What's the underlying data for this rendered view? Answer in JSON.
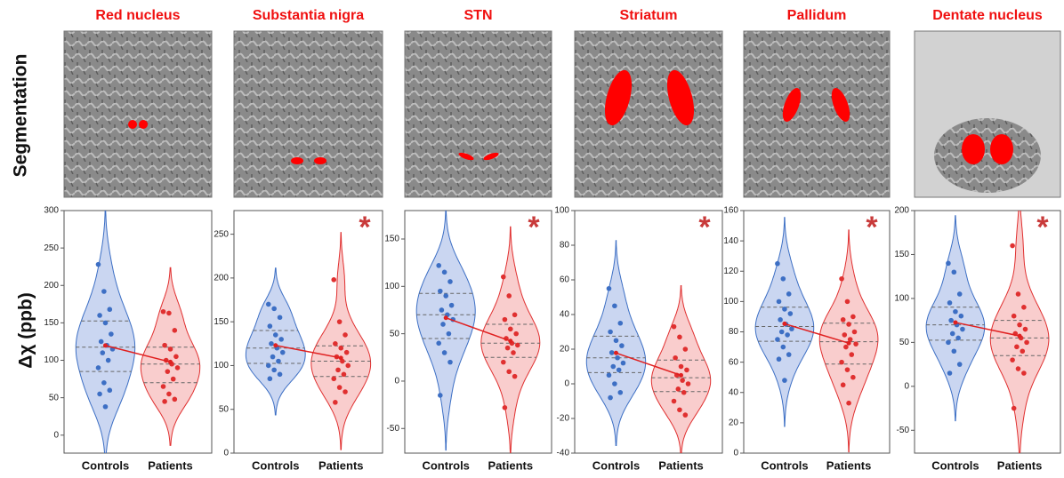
{
  "row_labels": [
    "Segmentation",
    "Δχ (ppb)"
  ],
  "chart_data": [
    {
      "type": "violin",
      "title": "Red nucleus",
      "ylim": [
        -24,
        300
      ],
      "yticks": [
        0,
        50,
        100,
        150,
        200,
        250,
        300
      ],
      "series": [
        {
          "name": "Controls",
          "color": "#3d6fc4",
          "values": [
            228,
            192,
            168,
            160,
            150,
            135,
            125,
            120,
            115,
            110,
            100,
            90,
            70,
            60,
            55,
            38
          ]
        },
        {
          "name": "Patients",
          "color": "#e03030",
          "values": [
            165,
            163,
            140,
            120,
            115,
            105,
            100,
            95,
            90,
            85,
            75,
            65,
            55,
            48,
            45
          ]
        }
      ]
    },
    {
      "type": "violin",
      "title": "Substantia nigra",
      "annotation": "*",
      "ylim": [
        0,
        277
      ],
      "yticks": [
        0,
        50,
        100,
        150,
        200,
        250
      ],
      "series": [
        {
          "name": "Controls",
          "color": "#3d6fc4",
          "values": [
            170,
            165,
            155,
            145,
            135,
            130,
            125,
            120,
            115,
            110,
            105,
            100,
            95,
            90,
            85
          ]
        },
        {
          "name": "Patients",
          "color": "#e03030",
          "values": [
            198,
            150,
            135,
            125,
            120,
            115,
            110,
            105,
            100,
            95,
            90,
            85,
            75,
            70,
            58
          ]
        }
      ]
    },
    {
      "type": "violin",
      "title": "STN",
      "annotation": "*",
      "ylim": [
        -76,
        180
      ],
      "yticks": [
        -50,
        0,
        50,
        100,
        150
      ],
      "series": [
        {
          "name": "Controls",
          "color": "#3d6fc4",
          "values": [
            122,
            115,
            105,
            95,
            90,
            80,
            75,
            70,
            65,
            60,
            50,
            40,
            30,
            20,
            -15
          ]
        },
        {
          "name": "Patients",
          "color": "#e03030",
          "values": [
            110,
            90,
            70,
            65,
            55,
            50,
            45,
            40,
            38,
            35,
            30,
            20,
            10,
            5,
            -28
          ]
        }
      ]
    },
    {
      "type": "violin",
      "title": "Striatum",
      "annotation": "*",
      "ylim": [
        -40,
        100
      ],
      "yticks": [
        -40,
        -20,
        0,
        20,
        40,
        60,
        80,
        100
      ],
      "series": [
        {
          "name": "Controls",
          "color": "#3d6fc4",
          "values": [
            55,
            45,
            35,
            30,
            25,
            22,
            18,
            15,
            12,
            10,
            8,
            5,
            0,
            -5,
            -8
          ]
        },
        {
          "name": "Patients",
          "color": "#e03030",
          "values": [
            33,
            27,
            20,
            15,
            10,
            8,
            5,
            2,
            0,
            -3,
            -5,
            -10,
            -15,
            -18
          ]
        }
      ]
    },
    {
      "type": "violin",
      "title": "Pallidum",
      "annotation": "*",
      "ylim": [
        0,
        160
      ],
      "yticks": [
        0,
        20,
        40,
        60,
        80,
        100,
        120,
        140,
        160
      ],
      "series": [
        {
          "name": "Controls",
          "color": "#3d6fc4",
          "values": [
            125,
            115,
            105,
            100,
            95,
            92,
            88,
            85,
            82,
            80,
            78,
            75,
            70,
            65,
            62,
            48
          ]
        },
        {
          "name": "Patients",
          "color": "#e03030",
          "values": [
            115,
            100,
            90,
            88,
            85,
            80,
            78,
            75,
            72,
            70,
            65,
            60,
            55,
            50,
            45,
            33
          ]
        }
      ]
    },
    {
      "type": "violin",
      "title": "Dentate nucleus",
      "annotation": "*",
      "ylim": [
        -76,
        200
      ],
      "yticks": [
        -50,
        0,
        50,
        100,
        150,
        200
      ],
      "series": [
        {
          "name": "Controls",
          "color": "#3d6fc4",
          "values": [
            140,
            130,
            105,
            95,
            85,
            80,
            75,
            70,
            65,
            60,
            55,
            50,
            40,
            25,
            15
          ]
        },
        {
          "name": "Patients",
          "color": "#e03030",
          "values": [
            160,
            105,
            90,
            80,
            70,
            65,
            60,
            55,
            50,
            45,
            40,
            30,
            20,
            15,
            -25
          ]
        }
      ]
    }
  ]
}
